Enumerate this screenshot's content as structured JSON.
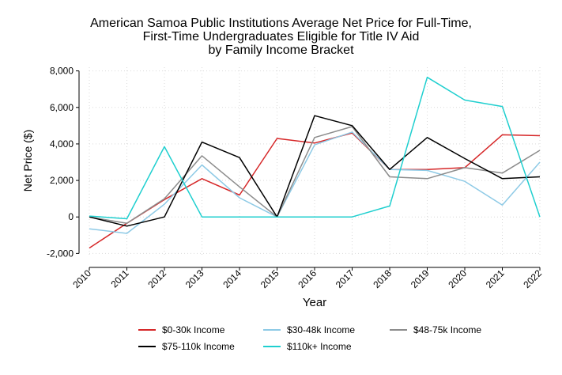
{
  "chart_data": {
    "type": "line",
    "title_lines": [
      "American Samoa Public Institutions Average Net Price for Full-Time,",
      "First-Time Undergraduates Eligible for Title IV Aid",
      "by Family Income Bracket"
    ],
    "xlabel": "Year",
    "ylabel": "Net Price ($)",
    "x": [
      "2010",
      "2011",
      "2012",
      "2013",
      "2014",
      "2015",
      "2016",
      "2017",
      "2018",
      "2019",
      "2020",
      "2021",
      "2022"
    ],
    "ylim": [
      -2200,
      8200
    ],
    "yticks": [
      -2000,
      0,
      2000,
      4000,
      6000,
      8000
    ],
    "ytick_labels": [
      "-2,000",
      "0",
      "2,000",
      "4,000",
      "6,000",
      "8,000"
    ],
    "grid": true,
    "legend_position": "bottom",
    "series": [
      {
        "name": "$0-30k Income",
        "color": "#d62728",
        "values": [
          -1700,
          -350,
          950,
          2100,
          1200,
          4300,
          4050,
          4600,
          2600,
          2600,
          2700,
          4500,
          4450
        ]
      },
      {
        "name": "$30-48k Income",
        "color": "#8ecae6",
        "values": [
          -650,
          -900,
          700,
          2850,
          1050,
          0,
          3950,
          4650,
          2600,
          2550,
          1950,
          650,
          3000
        ]
      },
      {
        "name": "$48-75k Income",
        "color": "#8c8c8c",
        "values": [
          0,
          -350,
          1000,
          3350,
          1650,
          0,
          4350,
          4950,
          2200,
          2100,
          2700,
          2400,
          3650
        ]
      },
      {
        "name": "$75-110k Income",
        "color": "#000000",
        "values": [
          0,
          -500,
          0,
          4100,
          3250,
          0,
          5550,
          5000,
          2600,
          4350,
          3200,
          2100,
          2200
        ]
      },
      {
        "name": "$110k+ Income",
        "color": "#1fcfcf",
        "values": [
          50,
          -100,
          3850,
          0,
          0,
          0,
          0,
          0,
          600,
          7650,
          6400,
          6050,
          0
        ]
      }
    ]
  }
}
